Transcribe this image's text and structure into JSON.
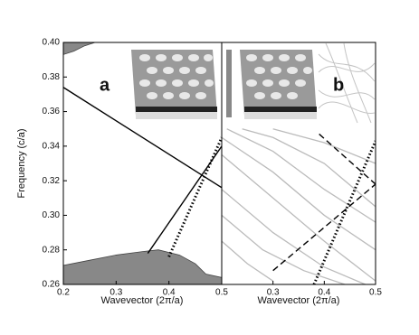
{
  "chart_data": [
    {
      "type": "line",
      "label": "a",
      "xlabel": "Wavevector (2π/a)",
      "ylabel": "Frequency (c/a)",
      "xlim": [
        0.2,
        0.5
      ],
      "ylim": [
        0.26,
        0.4
      ],
      "xticks": [
        0.2,
        0.3,
        0.4,
        0.5
      ],
      "yticks": [
        0.26,
        0.28,
        {
          "value": 0.3,
          "label": "0.30"
        },
        0.32,
        0.34,
        0.36,
        0.38,
        {
          "value": 0.4,
          "label": "0.40"
        }
      ],
      "series": [
        {
          "kind": "area",
          "fill": "top",
          "color": "#888888",
          "x": [
            0.2,
            0.22,
            0.24,
            0.26
          ],
          "values": [
            0.393,
            0.395,
            0.398,
            0.4
          ]
        },
        {
          "kind": "area",
          "fill": "bottom",
          "color": "#888888",
          "x": [
            0.2,
            0.25,
            0.3,
            0.35,
            0.38,
            0.42,
            0.45,
            0.47,
            0.5
          ],
          "values": [
            0.271,
            0.274,
            0.277,
            0.279,
            0.28,
            0.277,
            0.272,
            0.266,
            0.264
          ]
        },
        {
          "kind": "line",
          "style": "solid",
          "color": "#000000",
          "x": [
            0.2,
            0.5
          ],
          "values": [
            0.374,
            0.316
          ]
        },
        {
          "kind": "line",
          "style": "solid",
          "color": "#000000",
          "x": [
            0.36,
            0.5
          ],
          "values": [
            0.278,
            0.34
          ]
        },
        {
          "kind": "line",
          "style": "dotted",
          "color": "#000000",
          "x": [
            0.4,
            0.5
          ],
          "values": [
            0.276,
            0.345
          ]
        }
      ]
    },
    {
      "type": "line",
      "label": "b",
      "xlabel": "Wavevector (2π/a)",
      "xlim": [
        0.2,
        0.5
      ],
      "ylim": [
        0.26,
        0.4
      ],
      "xticks": [
        0.3,
        0.4,
        0.5
      ],
      "series": [
        {
          "kind": "line",
          "style": "solid",
          "color": "#bbbbbb",
          "x": [
            0.2,
            0.3,
            0.4,
            0.5
          ],
          "values": [
            0.335,
            0.31,
            0.285,
            0.262
          ]
        },
        {
          "kind": "line",
          "style": "solid",
          "color": "#bbbbbb",
          "x": [
            0.2,
            0.3,
            0.4,
            0.48
          ],
          "values": [
            0.315,
            0.29,
            0.27,
            0.26
          ]
        },
        {
          "kind": "line",
          "style": "solid",
          "color": "#bbbbbb",
          "x": [
            0.2,
            0.3,
            0.4,
            0.5
          ],
          "values": [
            0.345,
            0.325,
            0.3,
            0.28
          ]
        },
        {
          "kind": "line",
          "style": "solid",
          "color": "#bbbbbb",
          "x": [
            0.21,
            0.3,
            0.4,
            0.5
          ],
          "values": [
            0.35,
            0.337,
            0.315,
            0.296
          ]
        },
        {
          "kind": "line",
          "style": "solid",
          "color": "#bbbbbb",
          "x": [
            0.24,
            0.3,
            0.4,
            0.5
          ],
          "values": [
            0.35,
            0.345,
            0.33,
            0.305
          ]
        },
        {
          "kind": "line",
          "style": "solid",
          "color": "#bbbbbb",
          "x": [
            0.2,
            0.28,
            0.36,
            0.44
          ],
          "values": [
            0.3,
            0.28,
            0.268,
            0.26
          ]
        },
        {
          "kind": "line",
          "style": "solid",
          "color": "#bbbbbb",
          "x": [
            0.2,
            0.25,
            0.3
          ],
          "values": [
            0.285,
            0.272,
            0.262
          ]
        },
        {
          "kind": "line",
          "style": "solid",
          "color": "#bbbbbb",
          "x": [
            0.3,
            0.4,
            0.5
          ],
          "values": [
            0.35,
            0.342,
            0.33
          ]
        },
        {
          "kind": "line",
          "style": "dashed",
          "color": "#000000",
          "x": [
            0.3,
            0.5
          ],
          "values": [
            0.268,
            0.318
          ]
        },
        {
          "kind": "line",
          "style": "dashed",
          "color": "#000000",
          "x": [
            0.39,
            0.5
          ],
          "values": [
            0.347,
            0.318
          ]
        },
        {
          "kind": "line",
          "style": "dotted",
          "color": "#000000",
          "x": [
            0.38,
            0.5
          ],
          "values": [
            0.26,
            0.343
          ]
        }
      ]
    }
  ]
}
